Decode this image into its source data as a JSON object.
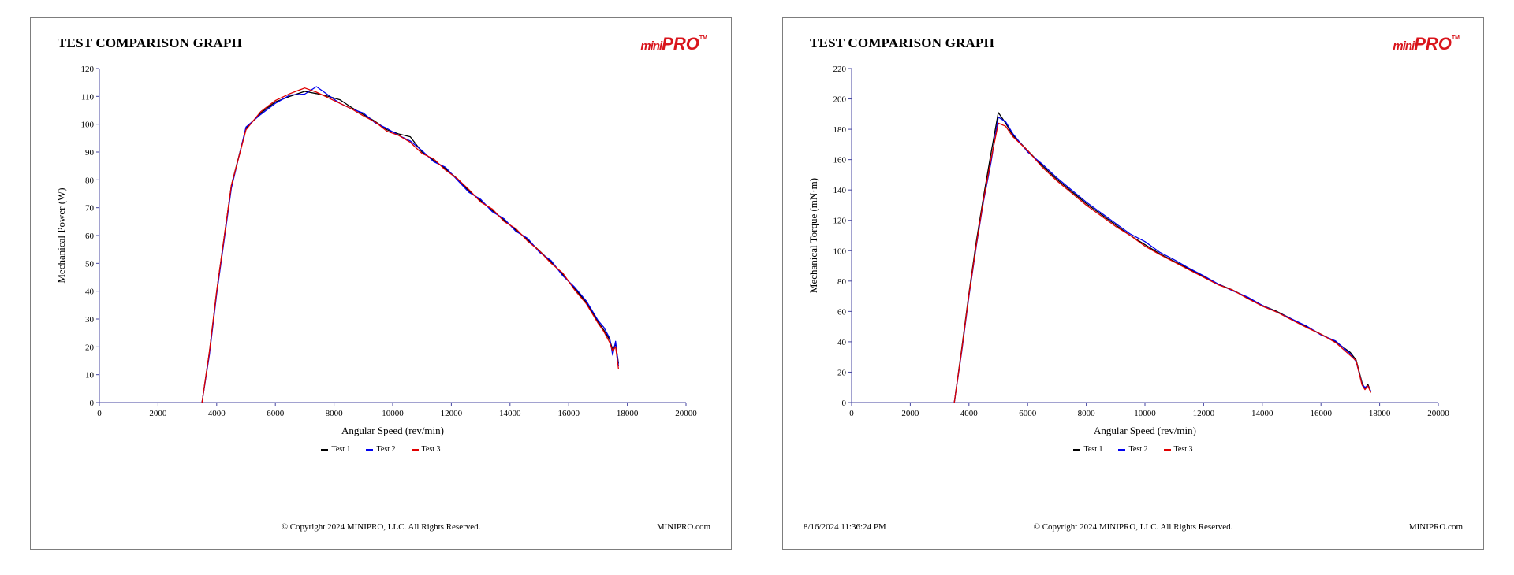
{
  "brand": {
    "logo_prefix": "mini",
    "logo_main": "PRO",
    "trademark": "TM"
  },
  "panels": [
    {
      "title": "TEST COMPARISON GRAPH",
      "timestamp": "",
      "copyright": "© Copyright 2024 MINIPRO, LLC. All Rights Reserved.",
      "website": "MINIPRO.com"
    },
    {
      "title": "TEST COMPARISON GRAPH",
      "timestamp": "8/16/2024 11:36:24 PM",
      "copyright": "© Copyright 2024 MINIPRO, LLC. All Rights Reserved.",
      "website": "MINIPRO.com"
    }
  ],
  "chart_data": [
    {
      "type": "line",
      "title": "TEST COMPARISON GRAPH",
      "xlabel": "Angular Speed (rev/min)",
      "ylabel": "Mechanical Power (W)",
      "xlim": [
        0,
        20000
      ],
      "xtick_step": 2000,
      "ylim": [
        0,
        120
      ],
      "ytick_step": 10,
      "grid": false,
      "legend_position": "bottom",
      "axis_color": "#4545a0",
      "x": [
        3500,
        3750,
        4000,
        4500,
        5000,
        5500,
        6000,
        6500,
        7000,
        7400,
        7800,
        8200,
        8600,
        9000,
        9400,
        9800,
        10200,
        10600,
        11000,
        11400,
        11800,
        12200,
        12600,
        13000,
        13400,
        13800,
        14200,
        14600,
        15000,
        15400,
        15800,
        16200,
        16600,
        17000,
        17200,
        17400,
        17500,
        17600,
        17700
      ],
      "series": [
        {
          "name": "Test 1",
          "color": "#000000",
          "values": [
            0,
            18,
            40,
            78,
            98.5,
            104,
            108,
            110,
            111.8,
            111,
            110,
            108.8,
            106,
            103.5,
            101,
            98,
            96.5,
            95.5,
            90,
            87,
            84,
            80.5,
            76,
            72.5,
            69,
            65.5,
            62,
            58.5,
            54.5,
            50.5,
            46,
            41,
            36,
            29,
            26,
            22.5,
            19,
            21,
            14
          ]
        },
        {
          "name": "Test 2",
          "color": "#0000ee",
          "values": [
            0,
            17,
            39,
            77,
            99,
            103.5,
            107.5,
            110.5,
            110.8,
            113.5,
            110.5,
            107.5,
            105.5,
            104,
            100.5,
            98.5,
            96,
            94,
            90.5,
            86.5,
            84.5,
            80,
            75.5,
            73,
            68.5,
            66,
            61.5,
            59,
            54,
            51,
            45.5,
            41.5,
            36.5,
            29.5,
            27,
            23,
            17,
            22,
            13
          ]
        },
        {
          "name": "Test 3",
          "color": "#e00000",
          "values": [
            0,
            18,
            40,
            78,
            98,
            104.5,
            108.5,
            111,
            113,
            111.5,
            109.5,
            107.5,
            105.5,
            103,
            100.8,
            97.5,
            96,
            93.5,
            89.5,
            87.5,
            83.5,
            80.5,
            76.5,
            72,
            69.5,
            65,
            62.5,
            58,
            54.5,
            50,
            46.5,
            40.5,
            35.5,
            28.5,
            25.5,
            21.5,
            18.5,
            20,
            12
          ]
        }
      ]
    },
    {
      "type": "line",
      "title": "TEST COMPARISON GRAPH",
      "xlabel": "Angular Speed (rev/min)",
      "ylabel": "Mechanical Torque (mN·m)",
      "xlim": [
        0,
        20000
      ],
      "xtick_step": 2000,
      "ylim": [
        0,
        220
      ],
      "ytick_step": 20,
      "grid": false,
      "legend_position": "bottom",
      "axis_color": "#4545a0",
      "x": [
        3500,
        3750,
        4000,
        4250,
        4500,
        4750,
        5000,
        5250,
        5500,
        6000,
        6500,
        7000,
        7500,
        8000,
        8500,
        9000,
        9500,
        10000,
        10500,
        11000,
        11500,
        12000,
        12500,
        13000,
        13500,
        14000,
        14500,
        15000,
        15500,
        16000,
        16500,
        17000,
        17200,
        17400,
        17500,
        17600,
        17700
      ],
      "series": [
        {
          "name": "Test 1",
          "color": "#000000",
          "values": [
            0,
            35,
            72,
            106,
            136,
            164,
            191,
            184,
            176,
            166,
            156,
            147,
            139,
            131,
            124,
            117,
            110,
            104,
            98,
            93,
            88,
            83,
            78,
            74,
            69,
            64,
            60,
            55,
            50,
            45,
            40,
            33,
            28,
            13,
            9,
            12,
            7
          ]
        },
        {
          "name": "Test 2",
          "color": "#0000ee",
          "values": [
            0,
            33,
            70,
            103,
            133,
            158,
            188,
            185,
            177,
            165,
            157,
            148,
            140,
            132,
            125,
            118,
            111,
            106,
            99,
            94,
            88.5,
            83.5,
            78,
            73.5,
            69.5,
            64,
            59.5,
            55,
            50.5,
            44.5,
            40.5,
            32,
            27,
            12,
            10,
            11,
            7.5
          ]
        },
        {
          "name": "Test 3",
          "color": "#e00000",
          "values": [
            0,
            34,
            71,
            104,
            134,
            160,
            184,
            182,
            175,
            166,
            155,
            146,
            138,
            130,
            123,
            116,
            110,
            103,
            97.5,
            92.5,
            87.5,
            82.5,
            77.5,
            74,
            68.5,
            63.5,
            59.5,
            54.5,
            49.5,
            45,
            39.5,
            31,
            27.5,
            11.5,
            8.5,
            11,
            6.5
          ]
        }
      ]
    }
  ]
}
